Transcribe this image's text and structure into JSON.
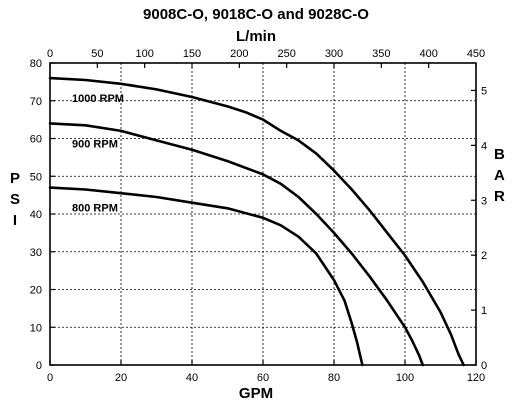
{
  "chart_data": {
    "type": "line",
    "title": "9008C-O, 9018C-O and 9028C-O",
    "xlabel": "GPM",
    "x2label": "L/min",
    "ylabel": "PSI",
    "y2label": "BAR",
    "xlim": [
      0,
      120
    ],
    "ylim": [
      0,
      80
    ],
    "x2lim": [
      0,
      450
    ],
    "y2lim": [
      0,
      5.5
    ],
    "xticks": [
      "0",
      "20",
      "40",
      "60",
      "80",
      "100",
      "120"
    ],
    "yticks": [
      "0",
      "10",
      "20",
      "30",
      "40",
      "50",
      "60",
      "70",
      "80"
    ],
    "x2ticks": [
      "0",
      "50",
      "100",
      "150",
      "200",
      "250",
      "300",
      "350",
      "400",
      "450"
    ],
    "y2ticks": [
      "0",
      "1",
      "2",
      "3",
      "4",
      "5"
    ],
    "grid": true,
    "series": [
      {
        "name": "1000 RPM",
        "x": [
          0,
          10,
          20,
          30,
          40,
          50,
          55,
          60,
          65,
          70,
          75,
          80,
          85,
          90,
          95,
          100,
          105,
          110,
          113,
          115,
          116.5
        ],
        "y": [
          76,
          75.5,
          74.5,
          73,
          71,
          68.5,
          67,
          65,
          62,
          59.5,
          56,
          51.5,
          46.5,
          41,
          35,
          29,
          22,
          14,
          8,
          3,
          0
        ]
      },
      {
        "name": "900 RPM",
        "x": [
          0,
          10,
          20,
          30,
          40,
          50,
          60,
          65,
          70,
          75,
          80,
          85,
          90,
          95,
          100,
          102,
          104,
          105
        ],
        "y": [
          64,
          63.5,
          62,
          59.5,
          57,
          54,
          50.5,
          48,
          44.5,
          40,
          35,
          29.5,
          23.5,
          17,
          10,
          6.5,
          2.5,
          0
        ]
      },
      {
        "name": "800 RPM",
        "x": [
          0,
          10,
          20,
          30,
          40,
          50,
          60,
          65,
          70,
          75,
          80,
          83,
          85,
          86.5,
          87.5,
          88
        ],
        "y": [
          47,
          46.5,
          45.5,
          44.5,
          43,
          41.5,
          39,
          37,
          34,
          29.5,
          22.5,
          17,
          11,
          6,
          2,
          0
        ]
      }
    ]
  }
}
